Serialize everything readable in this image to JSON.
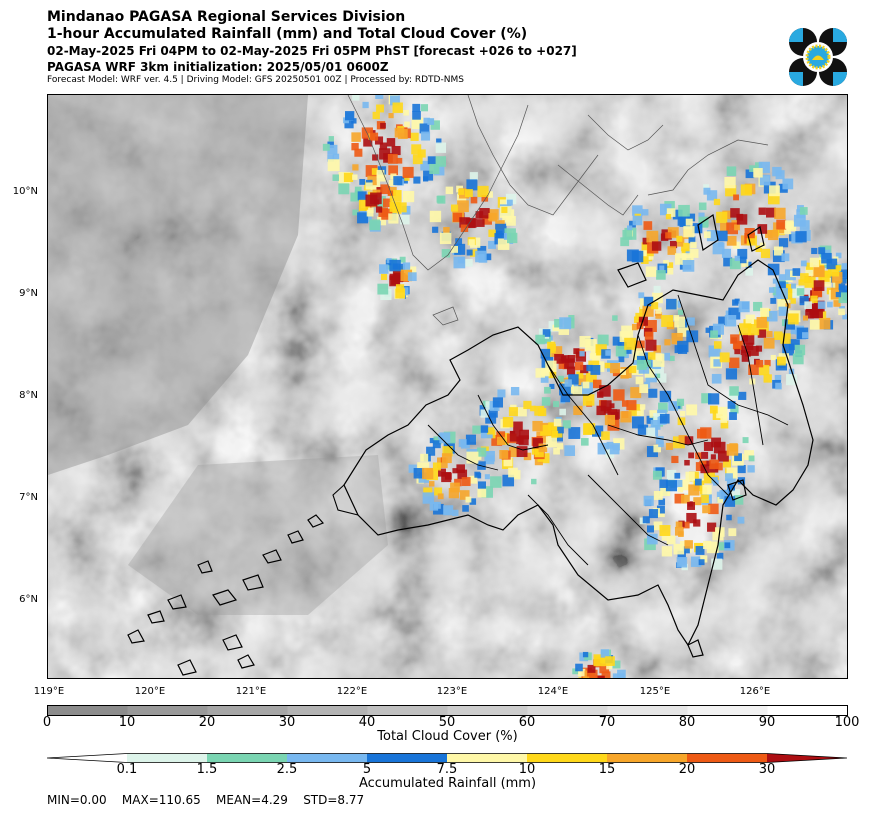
{
  "header": {
    "line1": "Mindanao PAGASA Regional Services Division",
    "line2": "1-hour Accumulated Rainfall (mm) and Total Cloud Cover (%)",
    "line3": "02-May-2025 Fri 04PM to 02-May-2025 Fri 05PM PhST [forecast +026 to +027]",
    "line4": "PAGASA WRF 3km initialization: 2025/05/01 0600Z",
    "line5": "Forecast Model: WRF ver. 4.5 | Driving Model: GFS 20250501 00Z | Processed by: RDTD-NMS"
  },
  "logo": {
    "icon": "pagasa-logo",
    "colors": [
      "#111111",
      "#29a9e0",
      "#f4d21f"
    ]
  },
  "map": {
    "lat_labels": [
      "10°N",
      "9°N",
      "8°N",
      "7°N",
      "6°N"
    ],
    "lon_labels": [
      "119°E",
      "120°E",
      "121°E",
      "122°E",
      "123°E",
      "124°E",
      "125°E",
      "126°E"
    ]
  },
  "cloud_colorbar": {
    "label": "Total Cloud Cover (%)",
    "ticks": [
      "0",
      "10",
      "20",
      "30",
      "40",
      "50",
      "60",
      "70",
      "80",
      "90",
      "100"
    ],
    "colors": [
      "#8c8c8c",
      "#999999",
      "#a6a6a6",
      "#b3b3b3",
      "#c0c0c0",
      "#cdcdcd",
      "#dadada",
      "#e6e6e6",
      "#f2f2f2",
      "#ffffff"
    ]
  },
  "rain_colorbar": {
    "label": "Accumulated Rainfall (mm)",
    "ticks": [
      "0.1",
      "1.5",
      "2.5",
      "5",
      "7.5",
      "10",
      "15",
      "20",
      "30"
    ],
    "colors": [
      "#ffffff",
      "#ddf4ea",
      "#7ad5b2",
      "#78b8f0",
      "#1874d8",
      "#fff8a8",
      "#ffd81a",
      "#f7a62a",
      "#ee5a14",
      "#ad0e12"
    ]
  },
  "stats": {
    "min": "MIN=0.00",
    "max": "MAX=110.65",
    "mean": "MEAN=4.29",
    "std": "STD=8.77"
  }
}
